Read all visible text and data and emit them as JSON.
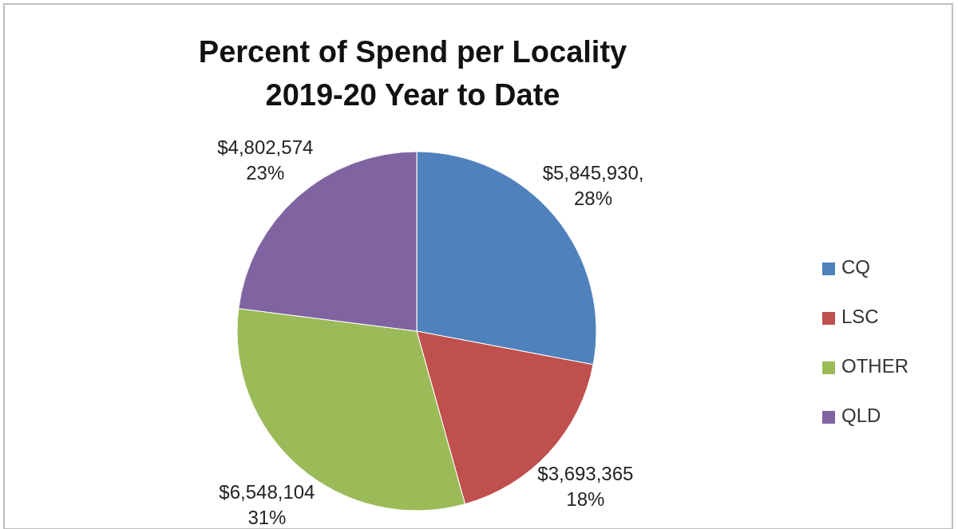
{
  "chart_data": {
    "type": "pie",
    "title": "Percent of Spend per Locality\n2019-20 Year to Date",
    "categories": [
      "CQ",
      "LSC",
      "OTHER",
      "QLD"
    ],
    "values": [
      5845930,
      3693365,
      6548104,
      4802574
    ],
    "colors": [
      "#4f81bd",
      "#c0504d",
      "#9bbb59",
      "#8064a2"
    ],
    "value_labels": [
      "$5,845,930,\n28%",
      "$3,693,365\n18%",
      "$6,548,104\n31%",
      "$4,802,574\n23%"
    ],
    "legend": "right"
  }
}
